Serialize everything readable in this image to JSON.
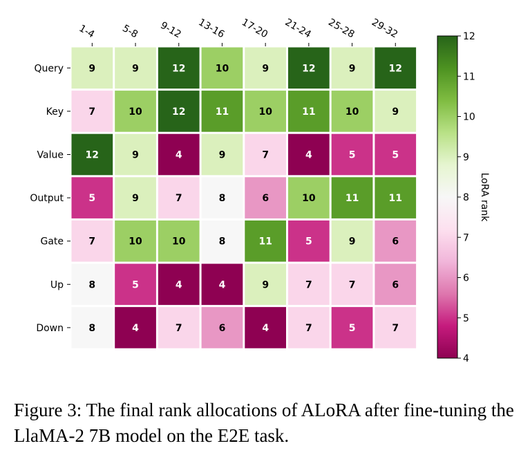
{
  "chart_data": {
    "type": "heatmap",
    "x_categories": [
      "1-4",
      "5-8",
      "9-12",
      "13-16",
      "17-20",
      "21-24",
      "25-28",
      "29-32"
    ],
    "y_categories": [
      "Query",
      "Key",
      "Value",
      "Output",
      "Gate",
      "Up",
      "Down"
    ],
    "values": [
      [
        9,
        9,
        12,
        10,
        9,
        12,
        9,
        12
      ],
      [
        7,
        10,
        12,
        11,
        10,
        11,
        10,
        9
      ],
      [
        12,
        9,
        4,
        9,
        7,
        4,
        5,
        5
      ],
      [
        5,
        9,
        7,
        8,
        6,
        10,
        11,
        11
      ],
      [
        7,
        10,
        10,
        8,
        11,
        5,
        9,
        6
      ],
      [
        8,
        5,
        4,
        4,
        9,
        7,
        7,
        6
      ],
      [
        8,
        4,
        7,
        6,
        4,
        7,
        5,
        7
      ]
    ],
    "colorbar": {
      "label": "LoRA rank",
      "min": 4,
      "max": 12,
      "ticks": [
        4,
        5,
        6,
        7,
        8,
        9,
        10,
        11,
        12
      ],
      "colormap": "PiYG"
    }
  },
  "caption": "Figure 3: The final rank allocations of ALoRA after fine-tuning the LlaMA-2 7B model on the E2E task."
}
